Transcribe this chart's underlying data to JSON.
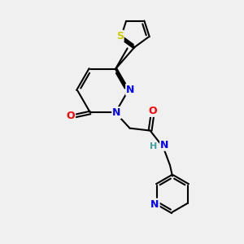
{
  "bg_color": "#f0f0f0",
  "bond_color": "#000000",
  "bond_width": 1.5,
  "dbo": 0.055,
  "atom_colors": {
    "N": "#0000ff",
    "O": "#ff0000",
    "S": "#cccc00",
    "H": "#40a0a0",
    "C": "#000000"
  },
  "fs": 9
}
